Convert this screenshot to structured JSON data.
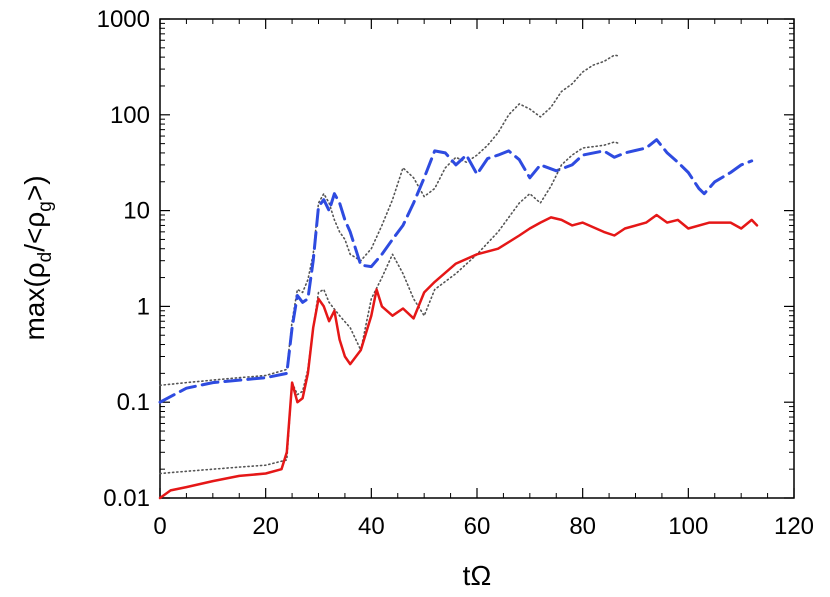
{
  "chart_data": {
    "type": "line",
    "title": "",
    "xlabel": "tΩ",
    "ylabel_parts": {
      "prefix": "max(ρ",
      "sub1": "d",
      "mid": "/<ρ",
      "sub2": "g",
      "suffix": ">)"
    },
    "xlim": [
      0,
      120
    ],
    "ylim": [
      0.01,
      1000
    ],
    "yscale": "log",
    "xticks": [
      0,
      20,
      40,
      60,
      80,
      100,
      120
    ],
    "xtick_labels": [
      "0",
      "20",
      "40",
      "60",
      "80",
      "100",
      "120"
    ],
    "yticks": [
      0.01,
      0.1,
      1,
      10,
      100,
      1000
    ],
    "ytick_labels": [
      "0.01",
      "0.1",
      "1",
      "10",
      "100",
      "1000"
    ],
    "grid": false,
    "legend": "none",
    "series": [
      {
        "style": "dotted",
        "color": "#555555",
        "x": [
          0,
          5,
          10,
          15,
          20,
          24,
          25,
          26,
          27,
          28,
          29,
          30,
          31,
          32,
          33,
          34,
          35,
          36,
          38,
          40,
          42,
          44,
          46,
          48,
          50,
          52,
          54,
          56,
          58,
          60,
          62,
          64,
          66,
          68,
          70,
          72,
          74,
          76,
          78,
          80,
          82,
          84,
          86,
          87
        ],
        "y": [
          0.15,
          0.16,
          0.17,
          0.18,
          0.19,
          0.22,
          0.7,
          1.5,
          1.4,
          1.9,
          3.5,
          12,
          15,
          12,
          8,
          6,
          5,
          3.5,
          3,
          4,
          7,
          13,
          28,
          22,
          14,
          17,
          28,
          36,
          32,
          38,
          48,
          65,
          100,
          130,
          115,
          95,
          120,
          175,
          210,
          280,
          330,
          360,
          420,
          410
        ]
      },
      {
        "style": "dashed",
        "color": "#2e4be0",
        "x": [
          0,
          5,
          10,
          15,
          20,
          24,
          25,
          26,
          27,
          28,
          29,
          30,
          31,
          32,
          33,
          34,
          35,
          36,
          38,
          40,
          42,
          44,
          46,
          48,
          50,
          52,
          54,
          56,
          58,
          60,
          62,
          64,
          66,
          68,
          70,
          72,
          75,
          78,
          80,
          84,
          86,
          88,
          92,
          94,
          96,
          98,
          100,
          102,
          103,
          105,
          108,
          110,
          112
        ],
        "y": [
          0.1,
          0.14,
          0.16,
          0.17,
          0.18,
          0.2,
          0.6,
          1.3,
          1.1,
          1.2,
          3,
          11,
          13,
          10,
          15,
          12,
          8,
          6,
          2.7,
          2.6,
          3.5,
          5,
          7,
          12,
          22,
          42,
          40,
          30,
          38,
          24,
          35,
          38,
          42,
          34,
          22,
          30,
          26,
          30,
          38,
          42,
          36,
          40,
          45,
          55,
          40,
          32,
          25,
          17,
          15,
          20,
          25,
          30,
          33
        ]
      },
      {
        "style": "dotted",
        "color": "#555555",
        "x": [
          0,
          5,
          10,
          15,
          20,
          24,
          25,
          26,
          27,
          28,
          29,
          30,
          31,
          32,
          34,
          36,
          38,
          40,
          42,
          44,
          46,
          48,
          50,
          52,
          56,
          60,
          64,
          68,
          70,
          72,
          74,
          76,
          78,
          80,
          84,
          86,
          87
        ],
        "y": [
          0.018,
          0.019,
          0.02,
          0.021,
          0.022,
          0.025,
          0.16,
          0.12,
          0.13,
          0.22,
          0.6,
          1.4,
          1.5,
          1.1,
          0.8,
          0.6,
          0.35,
          1.2,
          2,
          3.5,
          2.2,
          1.2,
          0.8,
          1.5,
          2.2,
          3.5,
          6,
          12,
          15,
          12,
          18,
          30,
          38,
          45,
          48,
          52,
          50
        ]
      },
      {
        "style": "solid",
        "color": "#e51717",
        "x": [
          0,
          2,
          5,
          10,
          15,
          20,
          23,
          24,
          25,
          26,
          27,
          28,
          29,
          30,
          31,
          32,
          33,
          34,
          35,
          36,
          38,
          40,
          41,
          42,
          44,
          46,
          48,
          50,
          52,
          56,
          60,
          64,
          68,
          70,
          72,
          74,
          76,
          78,
          80,
          84,
          86,
          88,
          92,
          94,
          96,
          98,
          100,
          104,
          108,
          110,
          112,
          113
        ],
        "y": [
          0.01,
          0.012,
          0.013,
          0.015,
          0.017,
          0.018,
          0.02,
          0.03,
          0.16,
          0.1,
          0.11,
          0.2,
          0.6,
          1.2,
          1,
          0.7,
          0.9,
          0.45,
          0.3,
          0.25,
          0.35,
          0.8,
          1.5,
          1,
          0.8,
          0.95,
          0.75,
          1.4,
          1.8,
          2.8,
          3.5,
          4,
          5.5,
          6.5,
          7.5,
          8.5,
          8,
          7,
          7.5,
          6,
          5.5,
          6.5,
          7.5,
          9,
          7.5,
          8,
          6.5,
          7.5,
          7.5,
          6.5,
          8,
          7
        ]
      }
    ]
  }
}
